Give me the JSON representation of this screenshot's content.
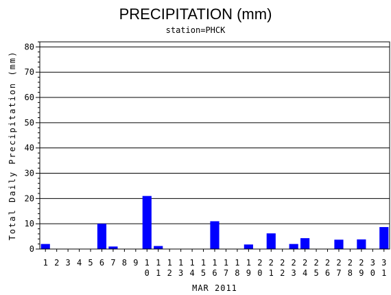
{
  "chart_data": {
    "type": "bar",
    "title": "PRECIPITATION (mm)",
    "subtitle": "station=PHCK",
    "xlabel": "MAR 2011",
    "ylabel": "Total Daily Precipitation (mm)",
    "ylim": [
      0,
      82
    ],
    "yticks": [
      0,
      10,
      20,
      30,
      40,
      50,
      60,
      70,
      80
    ],
    "grid": true,
    "categories": [
      "1",
      "2",
      "3",
      "4",
      "5",
      "6",
      "7",
      "8",
      "9",
      "10",
      "11",
      "12",
      "13",
      "14",
      "15",
      "16",
      "17",
      "18",
      "19",
      "20",
      "21",
      "22",
      "23",
      "24",
      "25",
      "26",
      "27",
      "28",
      "29",
      "30",
      "31"
    ],
    "series": [
      {
        "values": [
          2.0,
          0,
          0,
          0,
          0,
          10.0,
          1.0,
          0,
          0,
          21.0,
          1.2,
          0,
          0,
          0,
          0,
          11.0,
          0,
          0,
          1.8,
          0,
          6.2,
          0,
          2.0,
          4.3,
          0,
          0,
          3.7,
          0,
          3.8,
          0,
          8.7
        ]
      }
    ],
    "colors": {
      "bar": "#0000ff",
      "axis": "#000000",
      "grid": "#000000"
    }
  }
}
